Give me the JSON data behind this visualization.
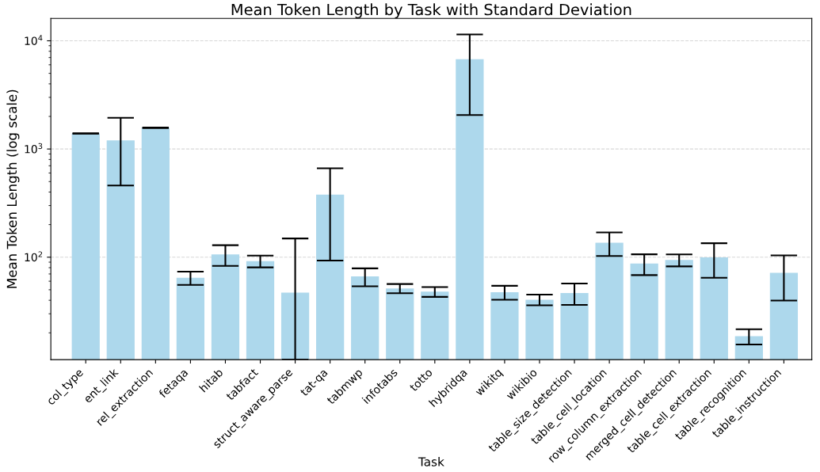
{
  "chart_data": {
    "type": "bar",
    "title": "Mean Token Length by Task with Standard Deviation",
    "xlabel": "Task",
    "ylabel": "Mean Token Length (log scale)",
    "categories": [
      "col_type",
      "ent_link",
      "rel_extraction",
      "fetaqa",
      "hitab",
      "tabfact",
      "struct_aware_parse",
      "tat-qa",
      "tabmwp",
      "infotabs",
      "totto",
      "hybridqa",
      "wikitq",
      "wikibio",
      "table_size_detection",
      "table_cell_location",
      "row_column_extraction",
      "merged_cell_detection",
      "table_cell_extraction",
      "table_recognition",
      "table_instruction"
    ],
    "values": [
      1390,
      1200,
      1570,
      64.5,
      106,
      92,
      47,
      378,
      66.4,
      51.5,
      48,
      6760,
      47.4,
      40.5,
      46.7,
      136,
      87.3,
      94.2,
      99.6,
      18.6,
      71.8
    ],
    "errors": [
      5,
      740,
      10,
      9,
      23,
      11.5,
      [
        11.3,
        149
      ],
      285,
      12.5,
      5,
      5,
      4700,
      7,
      4.6,
      10.5,
      33.5,
      19,
      12,
      35,
      3,
      32
    ],
    "color": "#add8ec",
    "log": "y",
    "ylim": [
      11.3,
      16100
    ],
    "yticks": [
      {
        "value": 100,
        "label": "10$^{2}$"
      },
      {
        "value": 1000,
        "label": "10$^{3}$"
      },
      {
        "value": 10000,
        "label": "10$^{4}$"
      }
    ],
    "grid": "y"
  }
}
